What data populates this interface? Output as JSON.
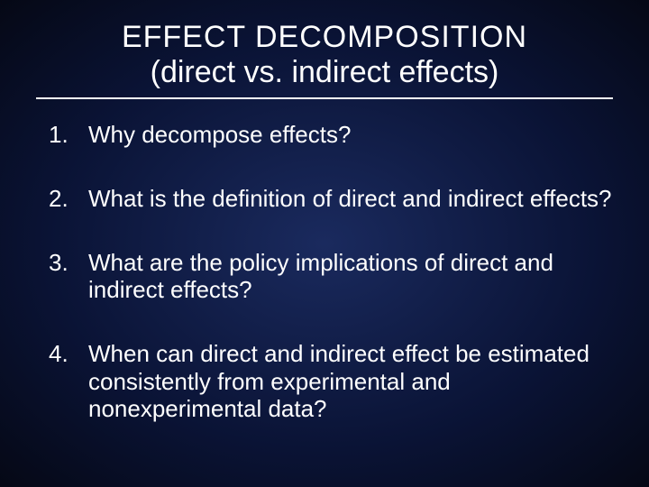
{
  "slide": {
    "title_line1": "EFFECT  DECOMPOSITION",
    "title_line2": "(direct vs. indirect effects)",
    "items": [
      "Why decompose effects?",
      "What is the definition of direct and indirect effects?",
      "What are the policy implications of direct and indirect effects?",
      "When can direct and indirect effect be estimated consistently from experimental and nonexperimental data?"
    ],
    "colors": {
      "background_inner": "#1a2a5e",
      "background_mid": "#0a1335",
      "background_outer": "#050815",
      "text": "#ffffff",
      "rule": "#ffffff"
    },
    "typography": {
      "title_fontsize": 34,
      "body_fontsize": 26,
      "font_family": "Arial"
    }
  }
}
